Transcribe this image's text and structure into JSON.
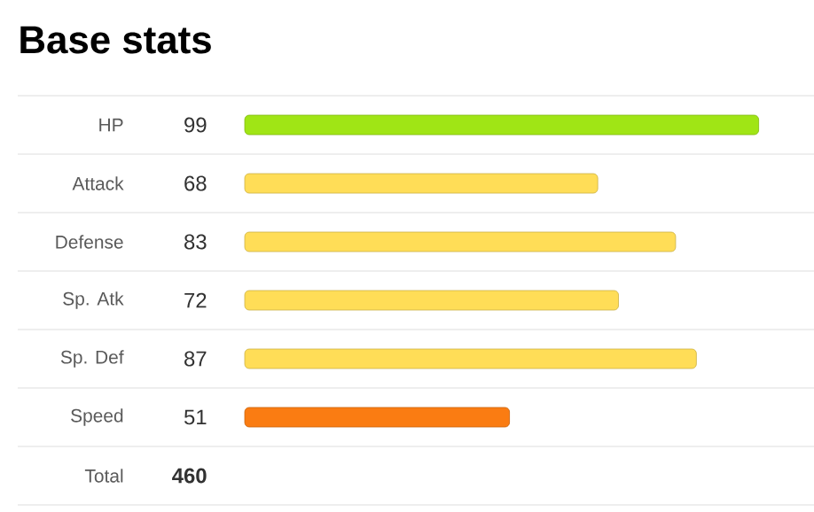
{
  "chart_data": {
    "type": "bar",
    "orientation": "horizontal",
    "title": "Base stats",
    "categories": [
      "HP",
      "Attack",
      "Defense",
      "Sp. Atk",
      "Sp. Def",
      "Speed"
    ],
    "values": [
      99,
      68,
      83,
      72,
      87,
      51
    ],
    "colors": [
      "#a0e515",
      "#ffdd57",
      "#ffdd57",
      "#ffdd57",
      "#ffdd57",
      "#fa7c12"
    ],
    "data_labels": true,
    "annotations": [
      "Total",
      "460"
    ]
  }
}
